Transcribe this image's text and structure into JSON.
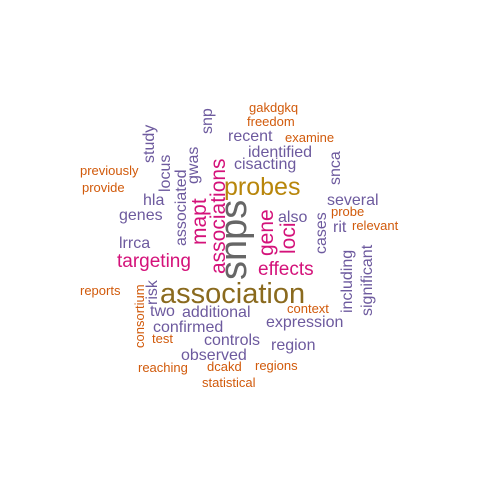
{
  "palette": {
    "purple": "#6d5a9e",
    "magenta": "#d4127a",
    "orange": "#d15a0b",
    "gold": "#b8860b",
    "gray": "#666666",
    "brown": "#8a6a1e"
  },
  "words": [
    {
      "text": "snps",
      "color": "gray"
    },
    {
      "text": "association",
      "color": "brown"
    },
    {
      "text": "probes",
      "color": "gold"
    },
    {
      "text": "associations",
      "color": "magenta"
    },
    {
      "text": "mapt",
      "color": "magenta"
    },
    {
      "text": "gene",
      "color": "magenta"
    },
    {
      "text": "loci",
      "color": "magenta"
    },
    {
      "text": "effects",
      "color": "magenta"
    },
    {
      "text": "targeting",
      "color": "magenta"
    },
    {
      "text": "gakdgkq",
      "color": "orange"
    },
    {
      "text": "freedom",
      "color": "orange"
    },
    {
      "text": "examine",
      "color": "orange"
    },
    {
      "text": "previously",
      "color": "orange"
    },
    {
      "text": "provide",
      "color": "orange"
    },
    {
      "text": "probe",
      "color": "orange"
    },
    {
      "text": "relevant",
      "color": "orange"
    },
    {
      "text": "reports",
      "color": "orange"
    },
    {
      "text": "context",
      "color": "orange"
    },
    {
      "text": "test",
      "color": "orange"
    },
    {
      "text": "consortium",
      "color": "orange"
    },
    {
      "text": "reaching",
      "color": "orange"
    },
    {
      "text": "dcakd",
      "color": "orange"
    },
    {
      "text": "regions",
      "color": "orange"
    },
    {
      "text": "statistical",
      "color": "orange"
    },
    {
      "text": "snp",
      "color": "purple"
    },
    {
      "text": "study",
      "color": "purple"
    },
    {
      "text": "recent",
      "color": "purple"
    },
    {
      "text": "identified",
      "color": "purple"
    },
    {
      "text": "cisacting",
      "color": "purple"
    },
    {
      "text": "snca",
      "color": "purple"
    },
    {
      "text": "locus",
      "color": "purple"
    },
    {
      "text": "associated",
      "color": "purple"
    },
    {
      "text": "gwas",
      "color": "purple"
    },
    {
      "text": "hla",
      "color": "purple"
    },
    {
      "text": "genes",
      "color": "purple"
    },
    {
      "text": "lrrca",
      "color": "purple"
    },
    {
      "text": "several",
      "color": "purple"
    },
    {
      "text": "also",
      "color": "purple"
    },
    {
      "text": "cases",
      "color": "purple"
    },
    {
      "text": "rit",
      "color": "purple"
    },
    {
      "text": "including",
      "color": "purple"
    },
    {
      "text": "significant",
      "color": "purple"
    },
    {
      "text": "risk",
      "color": "purple"
    },
    {
      "text": "two",
      "color": "purple"
    },
    {
      "text": "additional",
      "color": "purple"
    },
    {
      "text": "confirmed",
      "color": "purple"
    },
    {
      "text": "expression",
      "color": "purple"
    },
    {
      "text": "controls",
      "color": "purple"
    },
    {
      "text": "region",
      "color": "purple"
    },
    {
      "text": "observed",
      "color": "purple"
    }
  ]
}
